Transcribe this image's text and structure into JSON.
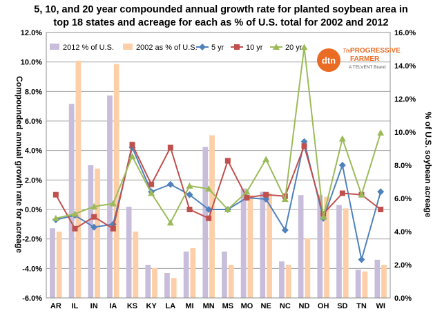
{
  "chart_data": {
    "type": "bar",
    "title_line1": "5, 10, and 20 year compounded annual growth rate for planted soybean area in",
    "title_line2": "top 18 states and acreage for each as % of U.S. total for 2002 and 2012",
    "ylabel_left": "Compounded annual growth rate for acreage",
    "ylabel_right": "% of U.S. soybean acreage",
    "y_left": {
      "min": -6.0,
      "max": 12.0,
      "step": 2.0,
      "ticks": [
        "-6.0%",
        "-4.0%",
        "-2.0%",
        "0.0%",
        "2.0%",
        "4.0%",
        "6.0%",
        "8.0%",
        "10.0%",
        "12.0%"
      ]
    },
    "y_right": {
      "min": 0.0,
      "max": 16.0,
      "step": 2.0,
      "ticks": [
        "0.0%",
        "2.0%",
        "4.0%",
        "6.0%",
        "8.0%",
        "10.0%",
        "12.0%",
        "14.0%",
        "16.0%"
      ]
    },
    "grid": true,
    "legend_position": "top",
    "categories": [
      "AR",
      "IL",
      "IN",
      "IA",
      "KS",
      "KY",
      "LA",
      "MI",
      "MN",
      "MS",
      "MO",
      "NE",
      "NC",
      "ND",
      "OH",
      "SD",
      "TN",
      "WI"
    ],
    "bar_series": [
      {
        "name": "2012 % of U.S.",
        "color": "#C8BEDB",
        "axis": "right",
        "values": [
          4.2,
          11.7,
          8.0,
          12.2,
          5.5,
          2.0,
          1.5,
          2.8,
          9.1,
          2.8,
          6.6,
          6.4,
          2.2,
          6.2,
          6.2,
          5.6,
          1.7,
          2.3
        ]
      },
      {
        "name": "2002 as % of U.S.",
        "color": "#FCCFA8",
        "axis": "right",
        "values": [
          4.0,
          14.3,
          7.8,
          14.1,
          4.0,
          1.8,
          1.2,
          3.0,
          9.8,
          2.0,
          6.2,
          6.3,
          2.0,
          3.6,
          6.1,
          5.4,
          1.6,
          2.0
        ]
      }
    ],
    "line_series": [
      {
        "name": "5 yr",
        "color": "#4F81BD",
        "marker": "diamond",
        "axis": "left",
        "values": [
          -0.7,
          -0.4,
          -1.2,
          -1.0,
          4.2,
          1.2,
          1.7,
          1.0,
          0.0,
          0.0,
          0.8,
          0.7,
          -1.4,
          4.6,
          -0.6,
          3.0,
          -3.4,
          1.2
        ]
      },
      {
        "name": "10 yr",
        "color": "#C0504D",
        "marker": "square",
        "axis": "left",
        "values": [
          1.0,
          -1.3,
          -0.5,
          -1.3,
          4.4,
          1.7,
          4.2,
          0.0,
          -0.6,
          3.3,
          0.8,
          1.0,
          0.9,
          4.3,
          -0.3,
          1.1,
          1.0,
          0.0
        ]
      },
      {
        "name": "20 yr",
        "color": "#9BBB59",
        "marker": "triangle",
        "axis": "left",
        "values": [
          -0.6,
          -0.3,
          0.2,
          0.4,
          3.6,
          1.1,
          -0.9,
          1.6,
          1.4,
          0.0,
          1.2,
          3.4,
          0.7,
          11.0,
          -0.5,
          4.8,
          1.0,
          5.2
        ]
      }
    ]
  },
  "logo": {
    "text": "dtn",
    "brand_line1": "The",
    "brand_line2": "PROGRESSIVE",
    "brand_line3": "FARMER",
    "brand_sub": "A TELVENT Brand"
  }
}
